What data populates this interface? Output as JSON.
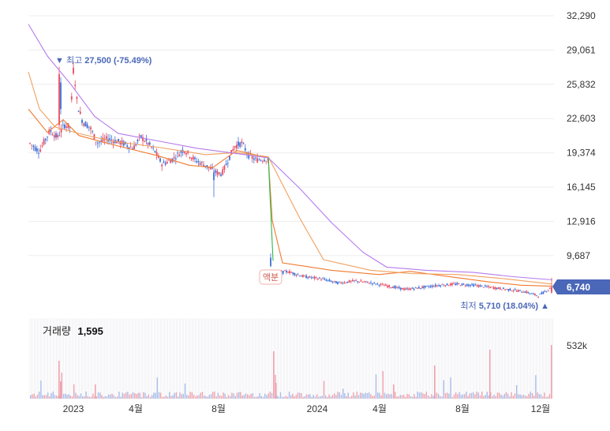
{
  "chart_data": {
    "type": "candlestick",
    "price_axis": {
      "ticks": [
        "32,290",
        "29,061",
        "25,832",
        "22,603",
        "19,374",
        "16,145",
        "12,916",
        "9,687"
      ],
      "tick_values": [
        32290,
        29061,
        25832,
        22603,
        19374,
        16145,
        12916,
        9687
      ],
      "range": [
        5000,
        33000
      ]
    },
    "x_axis": {
      "ticks": [
        "2023",
        "4월",
        "8월",
        "2024",
        "4월",
        "8월",
        "12월"
      ]
    },
    "current_price": {
      "label": "6,740",
      "value": 6740,
      "color": "#4a67b8"
    },
    "high_annotation": {
      "prefix": "▼ 최고",
      "value": "27,500",
      "change": "(-75.49%)"
    },
    "low_annotation": {
      "prefix": "최저",
      "value": "5,710",
      "change": "(18.04%)",
      "suffix": "▲"
    },
    "event_tag": "액분",
    "volume": {
      "title": "거래량",
      "value": "1,595",
      "axis_tick": "532k",
      "axis_tick_value": 532000
    },
    "price_series": [
      {
        "t": 0,
        "v": 20400
      },
      {
        "t": 0.03,
        "v": 19500
      },
      {
        "t": 0.06,
        "v": 21500
      },
      {
        "t": 0.08,
        "v": 20800
      },
      {
        "t": 0.1,
        "v": 22000
      },
      {
        "t": 0.115,
        "v": 21800
      },
      {
        "t": 0.125,
        "v": 27500
      },
      {
        "t": 0.135,
        "v": 24000
      },
      {
        "t": 0.15,
        "v": 22300
      },
      {
        "t": 0.17,
        "v": 21800
      },
      {
        "t": 0.19,
        "v": 20300
      },
      {
        "t": 0.22,
        "v": 20700
      },
      {
        "t": 0.26,
        "v": 20300
      },
      {
        "t": 0.29,
        "v": 19800
      },
      {
        "t": 0.31,
        "v": 20900
      },
      {
        "t": 0.33,
        "v": 20300
      },
      {
        "t": 0.35,
        "v": 19500
      },
      {
        "t": 0.37,
        "v": 18300
      },
      {
        "t": 0.4,
        "v": 18800
      },
      {
        "t": 0.43,
        "v": 19700
      },
      {
        "t": 0.46,
        "v": 18700
      },
      {
        "t": 0.49,
        "v": 18200
      },
      {
        "t": 0.51,
        "v": 17700
      },
      {
        "t": 0.52,
        "v": 17500
      },
      {
        "t": 0.535,
        "v": 17400
      },
      {
        "t": 0.55,
        "v": 18500
      },
      {
        "t": 0.57,
        "v": 20000
      },
      {
        "t": 0.59,
        "v": 20300
      },
      {
        "t": 0.61,
        "v": 19100
      },
      {
        "t": 0.63,
        "v": 18700
      },
      {
        "t": 0.65,
        "v": 18800
      },
      {
        "t": 0.67,
        "v": 18800
      },
      {
        "t": 0.675,
        "v": 9000
      },
      {
        "t": 0.7,
        "v": 8700
      },
      {
        "t": 0.73,
        "v": 8500
      },
      {
        "t": 0.76,
        "v": 8300
      },
      {
        "t": 0.79,
        "v": 8000
      },
      {
        "t": 0.82,
        "v": 7800
      },
      {
        "t": 0.85,
        "v": 7500
      },
      {
        "t": 0.87,
        "v": 7700
      },
      {
        "t": 0.89,
        "v": 8400
      },
      {
        "t": 0.91,
        "v": 8200
      },
      {
        "t": 0.93,
        "v": 8100
      },
      {
        "t": 0.95,
        "v": 8000
      },
      {
        "t": 0.97,
        "v": 8300
      },
      {
        "t": 1.0,
        "v": 7900
      }
    ],
    "price_series_2024": [
      {
        "t": 0,
        "v": 7900
      },
      {
        "t": 0.06,
        "v": 8200
      },
      {
        "t": 0.12,
        "v": 7700
      },
      {
        "t": 0.18,
        "v": 7500
      },
      {
        "t": 0.24,
        "v": 7100
      },
      {
        "t": 0.3,
        "v": 7300
      },
      {
        "t": 0.36,
        "v": 7100
      },
      {
        "t": 0.42,
        "v": 6800
      },
      {
        "t": 0.48,
        "v": 6500
      },
      {
        "t": 0.54,
        "v": 6700
      },
      {
        "t": 0.6,
        "v": 6900
      },
      {
        "t": 0.66,
        "v": 7000
      },
      {
        "t": 0.72,
        "v": 6900
      },
      {
        "t": 0.78,
        "v": 6700
      },
      {
        "t": 0.84,
        "v": 6500
      },
      {
        "t": 0.9,
        "v": 6300
      },
      {
        "t": 0.95,
        "v": 5900
      },
      {
        "t": 1.0,
        "v": 6740
      }
    ],
    "colors": {
      "up": "#e84a5f",
      "down": "#3b6fd8",
      "ma_short": "#f07a2f",
      "ma_long": "#b57aee",
      "ma_green": "#2fb84a",
      "grid": "#ededed",
      "accent": "#4a67b8"
    }
  }
}
